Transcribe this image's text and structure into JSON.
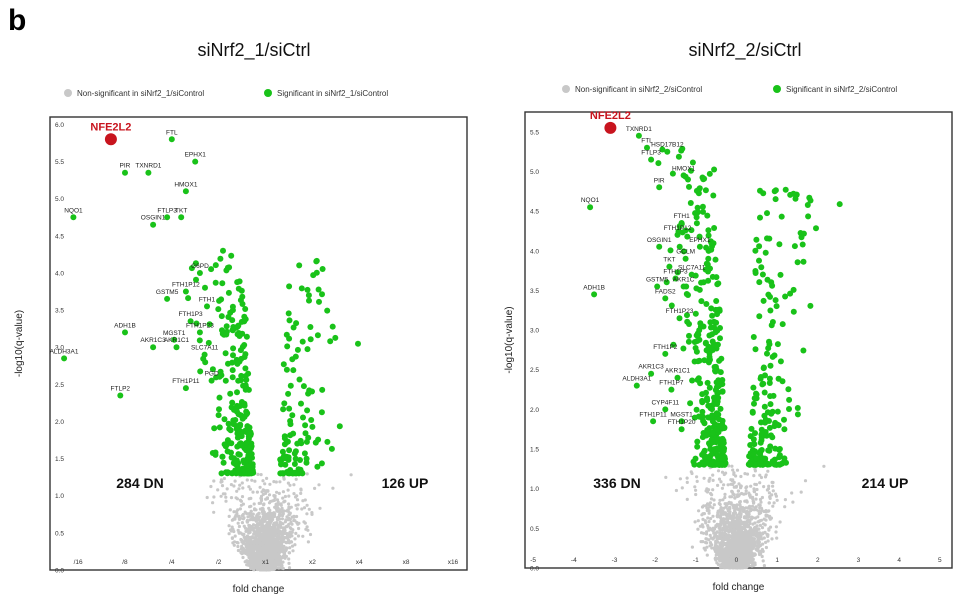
{
  "panel_label": "b",
  "colors": {
    "ns": "#c8c8c8",
    "sig": "#19c219",
    "highlight": "#c8141e",
    "frame": "#333333"
  },
  "chart_data": [
    {
      "type": "scatter",
      "title": "siNrf2_1/siCtrl",
      "xlabel": "fold change",
      "ylabel": "-log10(q-value)",
      "legend": [
        "Non-significant in siNrf2_1/siControl",
        "Significant in siNrf2_1/siControl"
      ],
      "legend_position": "top",
      "x_scale": "log2",
      "x_ticks": [
        "/16",
        "/8",
        "/4",
        "/2",
        "x1",
        "x2",
        "x4",
        "x8",
        "x16"
      ],
      "y_ticks": [
        "0.0",
        "0.5",
        "1.0",
        "1.5",
        "2.0",
        "2.5",
        "3.0",
        "3.5",
        "4.0",
        "4.5",
        "5.0",
        "5.5",
        "6.0"
      ],
      "xlim": [
        -4.6,
        4.3
      ],
      "ylim": [
        0,
        6.1
      ],
      "grid": false,
      "down_count_label": "284 DN",
      "up_count_label": "126 UP",
      "highlight": {
        "gene": "NFE2L2",
        "x": -3.3,
        "y": 5.8
      },
      "genes": [
        {
          "gene": "FTL",
          "x": -2.0,
          "y": 5.8
        },
        {
          "gene": "EPHX1",
          "x": -1.5,
          "y": 5.5
        },
        {
          "gene": "PIR",
          "x": -3.0,
          "y": 5.35
        },
        {
          "gene": "TXNRD1",
          "x": -2.5,
          "y": 5.35
        },
        {
          "gene": "HMOX1",
          "x": -1.7,
          "y": 5.1
        },
        {
          "gene": "NQO1",
          "x": -4.1,
          "y": 4.75
        },
        {
          "gene": "FTLP3",
          "x": -2.1,
          "y": 4.75
        },
        {
          "gene": "TKT",
          "x": -1.8,
          "y": 4.75
        },
        {
          "gene": "OSGIN1",
          "x": -2.4,
          "y": 4.65
        },
        {
          "gene": "G6PD",
          "x": -1.4,
          "y": 4.0
        },
        {
          "gene": "FTH1P12",
          "x": -1.7,
          "y": 3.75
        },
        {
          "gene": "GSTM5",
          "x": -2.1,
          "y": 3.65
        },
        {
          "gene": "FTH1",
          "x": -1.25,
          "y": 3.55
        },
        {
          "gene": "ADH1B",
          "x": -3.0,
          "y": 3.2
        },
        {
          "gene": "MGST1",
          "x": -1.95,
          "y": 3.1
        },
        {
          "gene": "FTH1P3",
          "x": -1.6,
          "y": 3.35
        },
        {
          "gene": "FTH1P23",
          "x": -1.4,
          "y": 3.2
        },
        {
          "gene": "AKR1C3",
          "x": -2.4,
          "y": 3.0
        },
        {
          "gene": "AKR1C1",
          "x": -1.9,
          "y": 3.0
        },
        {
          "gene": "SLC7A11",
          "x": -1.3,
          "y": 2.9
        },
        {
          "gene": "ALDH3A1",
          "x": -4.3,
          "y": 2.85
        },
        {
          "gene": "FTH1P11",
          "x": -1.7,
          "y": 2.45
        },
        {
          "gene": "PGD",
          "x": -1.15,
          "y": 2.55
        },
        {
          "gene": "FTLP2",
          "x": -3.1,
          "y": 2.35
        }
      ]
    },
    {
      "type": "scatter",
      "title": "siNrf2_2/siCtrl",
      "xlabel": "fold change",
      "ylabel": "-log10(q-value)",
      "legend": [
        "Non-significant in siNrf2_2/siControl",
        "Significant in siNrf2_2/siControl"
      ],
      "legend_position": "top",
      "x_scale": "linear",
      "x_ticks": [
        "-5",
        "-4",
        "-3",
        "-2",
        "-1",
        "0",
        "1",
        "2",
        "3",
        "4",
        "5"
      ],
      "y_ticks": [
        "0.0",
        "0.5",
        "1.0",
        "1.5",
        "2.0",
        "2.5",
        "3.0",
        "3.5",
        "4.0",
        "4.5",
        "5.0",
        "5.5"
      ],
      "xlim": [
        -5.2,
        5.3
      ],
      "ylim": [
        0,
        5.75
      ],
      "grid": false,
      "down_count_label": "336 DN",
      "up_count_label": "214 UP",
      "highlight": {
        "gene": "NFE2L2",
        "x": -3.1,
        "y": 5.55
      },
      "genes": [
        {
          "gene": "TXNRD1",
          "x": -2.4,
          "y": 5.45
        },
        {
          "gene": "FTL",
          "x": -2.2,
          "y": 5.3
        },
        {
          "gene": "HSD17B12",
          "x": -1.7,
          "y": 5.25
        },
        {
          "gene": "FTLP3",
          "x": -2.1,
          "y": 5.15
        },
        {
          "gene": "HMOX1",
          "x": -1.3,
          "y": 4.95
        },
        {
          "gene": "PIR",
          "x": -1.9,
          "y": 4.8
        },
        {
          "gene": "NQO1",
          "x": -3.6,
          "y": 4.55
        },
        {
          "gene": "FTH1",
          "x": -1.35,
          "y": 4.35
        },
        {
          "gene": "FTH1P12",
          "x": -1.45,
          "y": 4.2
        },
        {
          "gene": "OSGIN1",
          "x": -1.9,
          "y": 4.05
        },
        {
          "gene": "EPHX1",
          "x": -0.9,
          "y": 4.05
        },
        {
          "gene": "GCLM",
          "x": -1.25,
          "y": 3.9
        },
        {
          "gene": "TKT",
          "x": -1.65,
          "y": 3.8
        },
        {
          "gene": "SLC7A11",
          "x": -1.1,
          "y": 3.7
        },
        {
          "gene": "FTH1P3",
          "x": -1.5,
          "y": 3.65
        },
        {
          "gene": "ADH1B",
          "x": -3.5,
          "y": 3.45
        },
        {
          "gene": "GSTM5",
          "x": -1.95,
          "y": 3.55
        },
        {
          "gene": "AKR1C",
          "x": -1.3,
          "y": 3.55
        },
        {
          "gene": "FADS2",
          "x": -1.75,
          "y": 3.4
        },
        {
          "gene": "FTH1P23",
          "x": -1.4,
          "y": 3.15
        },
        {
          "gene": "FTH1P2",
          "x": -1.75,
          "y": 2.7
        },
        {
          "gene": "AKR1C3",
          "x": -2.1,
          "y": 2.45
        },
        {
          "gene": "AKR1C1",
          "x": -1.45,
          "y": 2.4
        },
        {
          "gene": "ALDH3A1",
          "x": -2.45,
          "y": 2.3
        },
        {
          "gene": "FTH1P7",
          "x": -1.6,
          "y": 2.25
        },
        {
          "gene": "CYP4F11",
          "x": -1.75,
          "y": 2.0
        },
        {
          "gene": "FTH1P11",
          "x": -2.05,
          "y": 1.85
        },
        {
          "gene": "MGST1",
          "x": -1.35,
          "y": 1.85
        },
        {
          "gene": "FTH1P20",
          "x": -1.35,
          "y": 1.75
        }
      ]
    }
  ]
}
